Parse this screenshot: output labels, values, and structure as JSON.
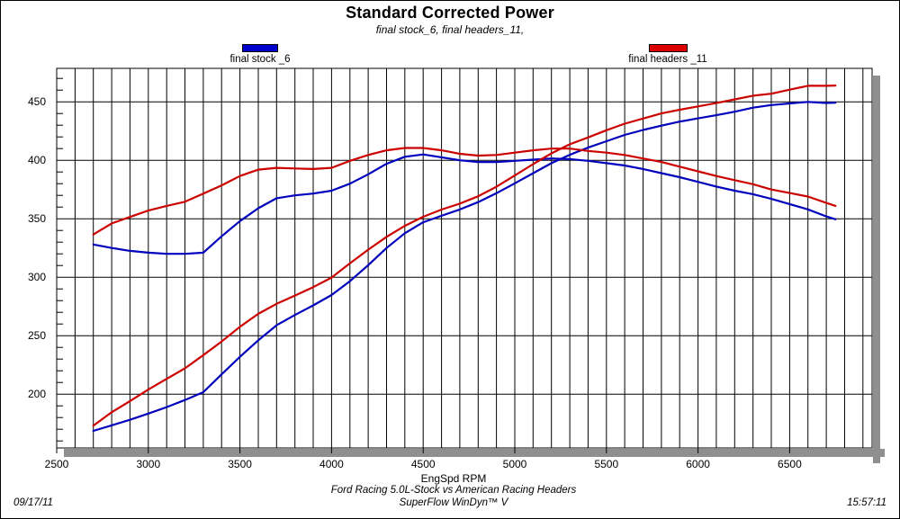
{
  "header": {
    "title": "Standard Corrected Power",
    "subtitle": "final stock_6, final headers_11,"
  },
  "legend": {
    "items": [
      {
        "label": "final stock _6",
        "color": "#0000cc"
      },
      {
        "label": "final headers _11",
        "color": "#dd0000"
      }
    ]
  },
  "footer": {
    "test_title": "Ford Racing 5.0L-Stock vs American Racing Headers",
    "software": "SuperFlow WinDyn™ V",
    "date": "09/17/11",
    "time": "15:57:11"
  },
  "chart_data": {
    "type": "line",
    "title": "Standard Corrected Power",
    "subtitle": "final stock_6, final headers_11,",
    "xlabel": "EngSpd RPM",
    "ylabel": "",
    "xlim": [
      2500,
      6950
    ],
    "ylim": [
      154,
      478.6
    ],
    "x_major_ticks": [
      2500,
      3000,
      3500,
      4000,
      4500,
      5000,
      5500,
      6000,
      6500
    ],
    "x_minor_grid_step": 100,
    "y_major_ticks": [
      200,
      250,
      300,
      350,
      400,
      450
    ],
    "y_minor_tick_step": 10,
    "grid": "vertical minor lines every 100 RPM; horizontal lines at 50-unit majors",
    "legend_position": "top",
    "shadow_color": "#8f8f8f",
    "x": [
      2700,
      2800,
      2900,
      3000,
      3100,
      3200,
      3300,
      3400,
      3500,
      3600,
      3700,
      3800,
      3900,
      4000,
      4100,
      4200,
      4300,
      4400,
      4500,
      4600,
      4700,
      4800,
      4900,
      5000,
      5100,
      5200,
      5300,
      5400,
      5500,
      5600,
      5700,
      5800,
      5900,
      6000,
      6100,
      6200,
      6300,
      6400,
      6500,
      6600,
      6700,
      6750
    ],
    "series": [
      {
        "id": "stock-torque",
        "name": "final stock _6 (torque, lb-ft)",
        "color": "#0000bd",
        "values": [
          328,
          325,
          322.5,
          321,
          320,
          320,
          321,
          335,
          348,
          359,
          367.5,
          370,
          371.5,
          374,
          380,
          388,
          397,
          403,
          405,
          402.5,
          400,
          398.5,
          398.5,
          399.5,
          400.5,
          401.5,
          401,
          399.5,
          397.5,
          395.5,
          392.5,
          389,
          385.5,
          381.5,
          377.5,
          374,
          371,
          367,
          362.5,
          358,
          352,
          349.5
        ]
      },
      {
        "id": "stock-power",
        "name": "final stock _6 (power, hp)",
        "color": "#0000bd",
        "values": [
          168.6,
          173.3,
          178.1,
          183.4,
          188.9,
          195.0,
          201.7,
          216.9,
          231.9,
          246.1,
          258.9,
          267.7,
          275.9,
          284.8,
          296.6,
          310.3,
          325.0,
          337.6,
          347.0,
          352.5,
          357.9,
          364.2,
          371.8,
          380.3,
          388.9,
          397.5,
          404.7,
          410.8,
          416.3,
          421.7,
          425.9,
          429.6,
          433.1,
          435.8,
          438.5,
          441.5,
          445.0,
          447.2,
          448.6,
          449.9,
          449.0,
          449.2
        ]
      },
      {
        "id": "headers-torque",
        "name": "final headers _11 (torque, lb-ft)",
        "color": "#cc0000",
        "values": [
          336.5,
          346,
          351.5,
          357,
          361,
          364.5,
          371.5,
          378.5,
          386.5,
          392,
          393.5,
          393,
          392.5,
          393.5,
          399.5,
          404.5,
          408.5,
          410.5,
          410.5,
          408.5,
          405.5,
          404,
          404.5,
          406.5,
          408.5,
          410,
          410,
          408,
          406.5,
          404.5,
          401.5,
          398.5,
          394.5,
          390.5,
          386.5,
          383,
          379.5,
          375,
          372,
          369,
          363.5,
          361
        ]
      },
      {
        "id": "headers-power",
        "name": "final headers _11 (power, hp)",
        "color": "#cc0000",
        "values": [
          173.0,
          184.5,
          194.1,
          203.9,
          213.1,
          222.1,
          233.4,
          245.0,
          257.6,
          268.7,
          277.2,
          284.3,
          291.5,
          299.7,
          311.9,
          323.5,
          334.5,
          343.9,
          351.7,
          357.8,
          362.9,
          369.2,
          377.4,
          387.0,
          396.7,
          405.9,
          413.7,
          419.5,
          425.7,
          431.3,
          435.7,
          440.1,
          443.2,
          446.1,
          448.9,
          452.1,
          455.2,
          456.9,
          460.4,
          463.7,
          463.7,
          463.9
        ]
      }
    ]
  }
}
